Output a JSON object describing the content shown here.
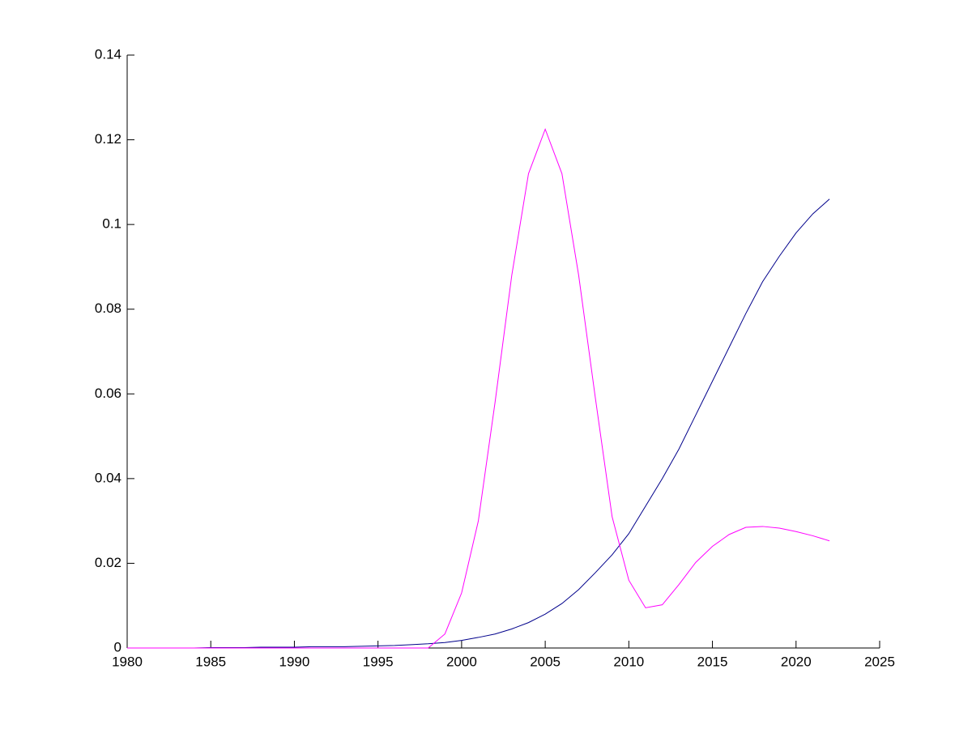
{
  "chart_data": {
    "type": "line",
    "x": [
      1980,
      1981,
      1982,
      1983,
      1984,
      1985,
      1986,
      1987,
      1988,
      1989,
      1990,
      1991,
      1992,
      1993,
      1994,
      1995,
      1996,
      1997,
      1998,
      1999,
      2000,
      2001,
      2002,
      2003,
      2004,
      2005,
      2006,
      2007,
      2008,
      2009,
      2010,
      2011,
      2012,
      2013,
      2014,
      2015,
      2016,
      2017,
      2018,
      2019,
      2020,
      2021,
      2022
    ],
    "series": [
      {
        "color": "#00008b",
        "values": [
          0,
          0,
          0,
          0,
          0,
          0.0001,
          0.0001,
          0.0001,
          0.0002,
          0.0002,
          0.0002,
          0.0003,
          0.0003,
          0.0003,
          0.0004,
          0.0005,
          0.0006,
          0.0008,
          0.001,
          0.0013,
          0.0018,
          0.0025,
          0.0033,
          0.0045,
          0.006,
          0.008,
          0.0105,
          0.0138,
          0.0178,
          0.022,
          0.027,
          0.0335,
          0.04,
          0.047,
          0.055,
          0.063,
          0.071,
          0.079,
          0.0865,
          0.0925,
          0.098,
          0.1025,
          0.106
        ]
      },
      {
        "color": "#ff00ff",
        "values": [
          0,
          0,
          0,
          0,
          0,
          0,
          0,
          0,
          0,
          0,
          0,
          0,
          0,
          0,
          0,
          0,
          0,
          0,
          0,
          0.0033,
          0.013,
          0.03,
          0.058,
          0.088,
          0.112,
          0.1225,
          0.112,
          0.088,
          0.059,
          0.031,
          0.016,
          0.0095,
          0.0102,
          0.015,
          0.0202,
          0.024,
          0.0268,
          0.0285,
          0.0287,
          0.0283,
          0.0275,
          0.0265,
          0.0253
        ]
      }
    ],
    "xlim": [
      1980,
      2025
    ],
    "xticks": [
      1980,
      1985,
      1990,
      1995,
      2000,
      2005,
      2010,
      2015,
      2020,
      2025
    ],
    "ylim": [
      0,
      0.14
    ],
    "yticks": [
      0,
      0.02,
      0.04,
      0.06,
      0.08,
      0.1,
      0.12,
      0.14
    ]
  }
}
